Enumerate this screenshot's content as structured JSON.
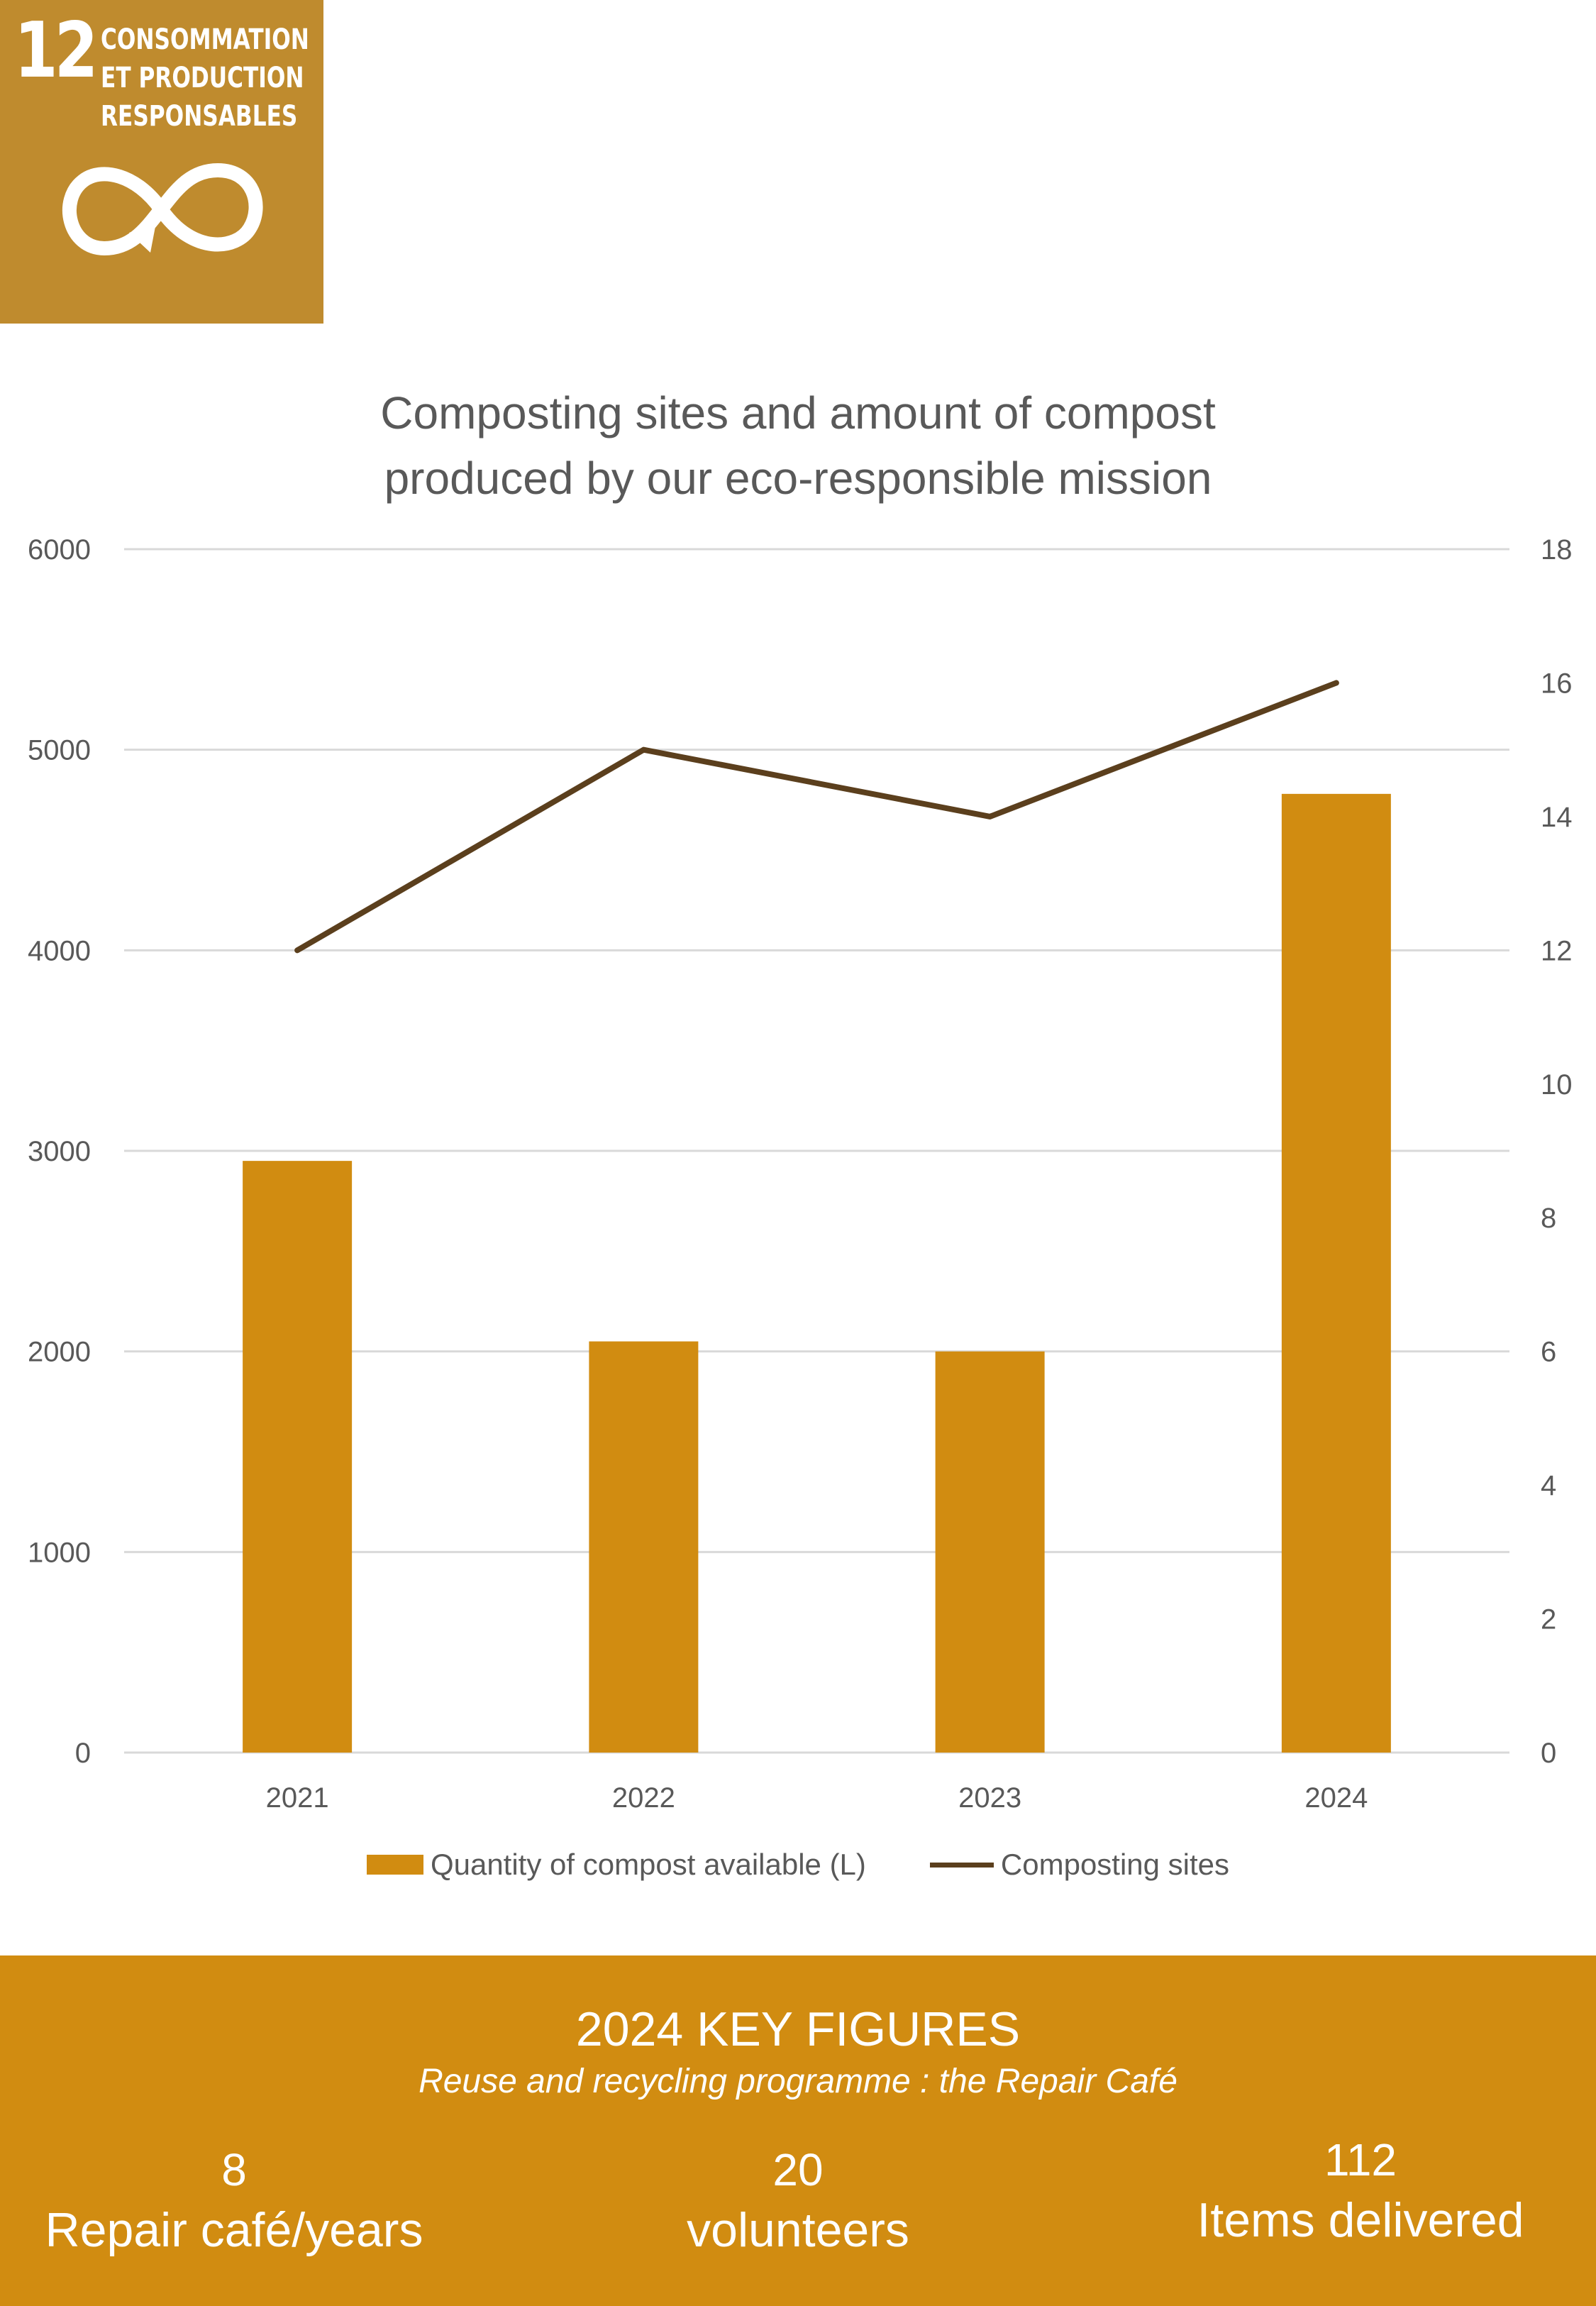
{
  "badge": {
    "number": "12",
    "lines": [
      "CONSOMMATION",
      "ET PRODUCTION",
      "RESPONSABLES"
    ],
    "icon": "infinity-arrow-icon",
    "color": "#bf8b2e"
  },
  "chart_title_line1": "Composting sites and amount of compost",
  "chart_title_line2": "produced by our eco-responsible mission",
  "chart_data": {
    "type": "bar",
    "title": "Composting sites and amount of compost produced by our eco-responsible mission",
    "categories": [
      "2021",
      "2022",
      "2023",
      "2024"
    ],
    "series": [
      {
        "name": "Quantity of compost available (L)",
        "type": "bar",
        "axis": "left",
        "values": [
          2950,
          2050,
          2000,
          4780
        ],
        "color": "#d18c11"
      },
      {
        "name": "Composting sites",
        "type": "line",
        "axis": "right",
        "values": [
          12,
          15,
          14,
          16
        ],
        "color": "#5b3f1d"
      }
    ],
    "y_left": {
      "min": 0,
      "max": 6000,
      "ticks": [
        "0",
        "1000",
        "2000",
        "3000",
        "4000",
        "5000",
        "6000"
      ]
    },
    "y_right": {
      "min": 0,
      "max": 18,
      "ticks": [
        "0",
        "2",
        "4",
        "6",
        "8",
        "10",
        "12",
        "14",
        "16",
        "18"
      ]
    },
    "grid": true,
    "legend_position": "bottom"
  },
  "footer": {
    "title": "2024 KEY FIGURES",
    "subtitle": "Reuse and recycling programme : the Repair Café",
    "figures": [
      {
        "value": "8",
        "label": "Repair café/years"
      },
      {
        "value": "20",
        "label": "volunteers"
      },
      {
        "value": "112",
        "label": "Items delivered"
      }
    ],
    "color": "#d18c11"
  }
}
